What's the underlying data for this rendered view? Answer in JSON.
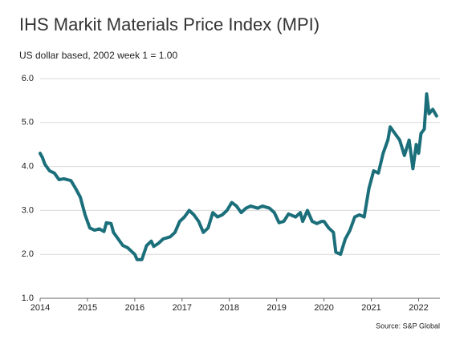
{
  "chart_data": {
    "type": "line",
    "title": "IHS Markit Materials Price Index (MPI)",
    "subtitle": "US dollar based, 2002 week 1 = 1.00",
    "source": "Source: S&P Global",
    "x": [
      2014.0,
      2014.05,
      2014.1,
      2014.2,
      2014.3,
      2014.4,
      2014.5,
      2014.65,
      2014.75,
      2014.85,
      2014.95,
      2015.05,
      2015.15,
      2015.25,
      2015.35,
      2015.4,
      2015.5,
      2015.55,
      2015.65,
      2015.75,
      2015.85,
      2015.95,
      2016.0,
      2016.05,
      2016.15,
      2016.25,
      2016.35,
      2016.4,
      2016.5,
      2016.6,
      2016.75,
      2016.85,
      2016.95,
      2017.05,
      2017.15,
      2017.25,
      2017.35,
      2017.45,
      2017.55,
      2017.65,
      2017.75,
      2017.85,
      2017.95,
      2018.05,
      2018.15,
      2018.25,
      2018.35,
      2018.45,
      2018.6,
      2018.7,
      2018.85,
      2018.95,
      2019.05,
      2019.15,
      2019.25,
      2019.4,
      2019.5,
      2019.55,
      2019.65,
      2019.75,
      2019.85,
      2019.95,
      2020.0,
      2020.1,
      2020.2,
      2020.25,
      2020.35,
      2020.45,
      2020.55,
      2020.65,
      2020.75,
      2020.85,
      2020.95,
      2021.05,
      2021.15,
      2021.25,
      2021.35,
      2021.4,
      2021.5,
      2021.6,
      2021.7,
      2021.8,
      2021.88,
      2021.95,
      2022.0,
      2022.05,
      2022.12,
      2022.17,
      2022.22,
      2022.3,
      2022.38
    ],
    "series": [
      {
        "name": "MPI",
        "color": "#1b6f7a",
        "values": [
          4.3,
          4.2,
          4.05,
          3.9,
          3.85,
          3.7,
          3.72,
          3.68,
          3.5,
          3.3,
          2.9,
          2.6,
          2.55,
          2.58,
          2.52,
          2.72,
          2.7,
          2.5,
          2.35,
          2.2,
          2.15,
          2.05,
          2.0,
          1.88,
          1.88,
          2.2,
          2.3,
          2.18,
          2.25,
          2.35,
          2.4,
          2.5,
          2.75,
          2.85,
          3.0,
          2.9,
          2.75,
          2.5,
          2.6,
          2.95,
          2.85,
          2.9,
          3.0,
          3.18,
          3.1,
          2.95,
          3.05,
          3.1,
          3.05,
          3.1,
          3.05,
          2.95,
          2.72,
          2.75,
          2.92,
          2.85,
          2.95,
          2.75,
          3.0,
          2.75,
          2.7,
          2.75,
          2.75,
          2.6,
          2.5,
          2.05,
          2.0,
          2.35,
          2.55,
          2.85,
          2.9,
          2.85,
          3.5,
          3.9,
          3.85,
          4.3,
          4.6,
          4.9,
          4.75,
          4.6,
          4.25,
          4.6,
          3.95,
          4.5,
          4.3,
          4.75,
          4.85,
          5.65,
          5.2,
          5.3,
          5.15
        ]
      }
    ],
    "xlim": [
      2014,
      2022.45
    ],
    "xticks": [
      2014,
      2015,
      2016,
      2017,
      2018,
      2019,
      2020,
      2021,
      2022
    ],
    "ylim": [
      1,
      6
    ],
    "yticks": [
      {
        "value": 1,
        "label": "1.0"
      },
      {
        "value": 2,
        "label": "2.0"
      },
      {
        "value": 3,
        "label": "3.0"
      },
      {
        "value": 4,
        "label": "4.0"
      },
      {
        "value": 5,
        "label": "5.0"
      },
      {
        "value": 6,
        "label": "6.0"
      }
    ],
    "grid": true
  }
}
